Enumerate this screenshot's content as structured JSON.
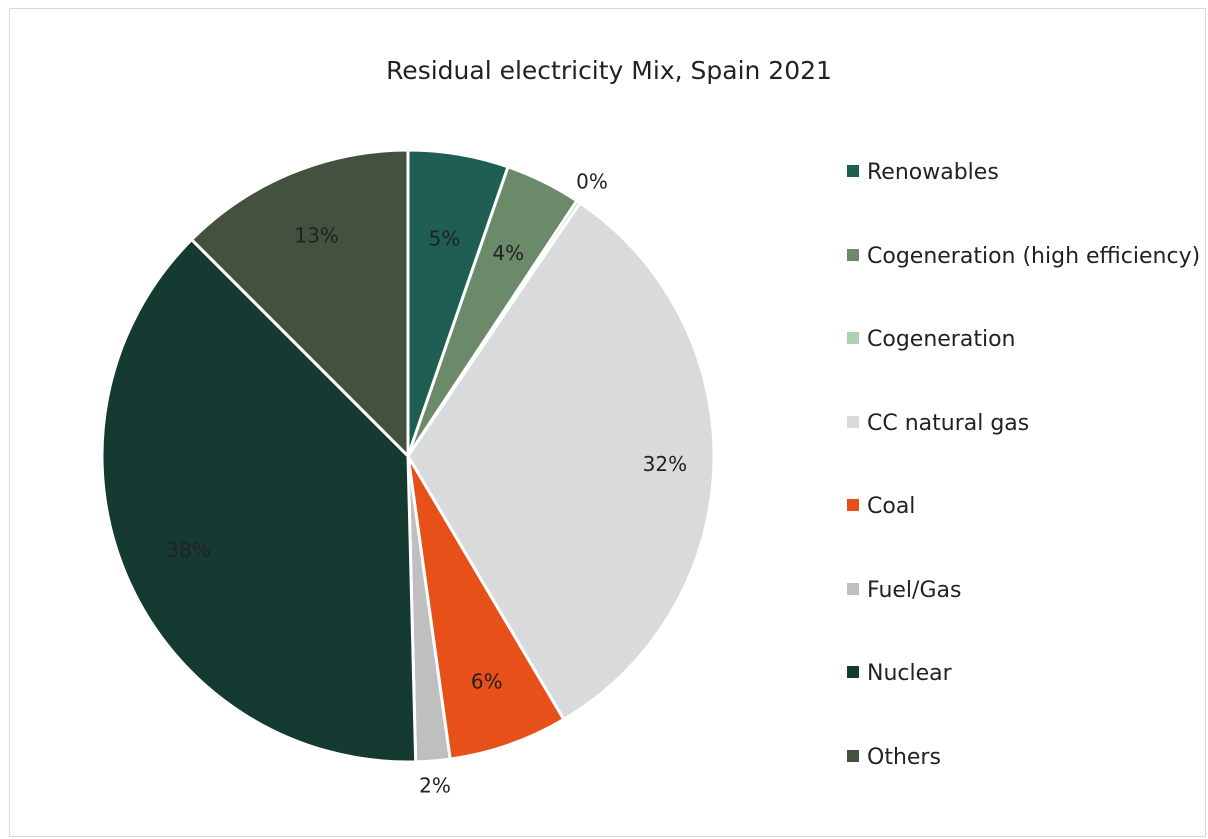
{
  "chart_data": {
    "type": "pie",
    "title": "Residual electricity Mix, Spain 2021",
    "legend_position": "right",
    "slices": [
      {
        "name": "Renowables",
        "value": 5.3,
        "label": "5%",
        "color": "#1f5e52"
      },
      {
        "name": "Cogeneration (high efficiency)",
        "value": 4.0,
        "label": "4%",
        "color": "#6b8a69"
      },
      {
        "name": "Cogeneration",
        "value": 0.2,
        "label": "0%",
        "color": "#a9d3b1"
      },
      {
        "name": "CC natural gas",
        "value": 32.0,
        "label": "32%",
        "color": "#d9dadc"
      },
      {
        "name": "Coal",
        "value": 6.3,
        "label": "6%",
        "color": "#e85019"
      },
      {
        "name": "Fuel/Gas",
        "value": 1.8,
        "label": "2%",
        "color": "#bfbfbf"
      },
      {
        "name": "Nuclear",
        "value": 37.9,
        "label": "38%",
        "color": "#143a32"
      },
      {
        "name": "Others",
        "value": 12.5,
        "label": "13%",
        "color": "#45513f"
      }
    ]
  }
}
